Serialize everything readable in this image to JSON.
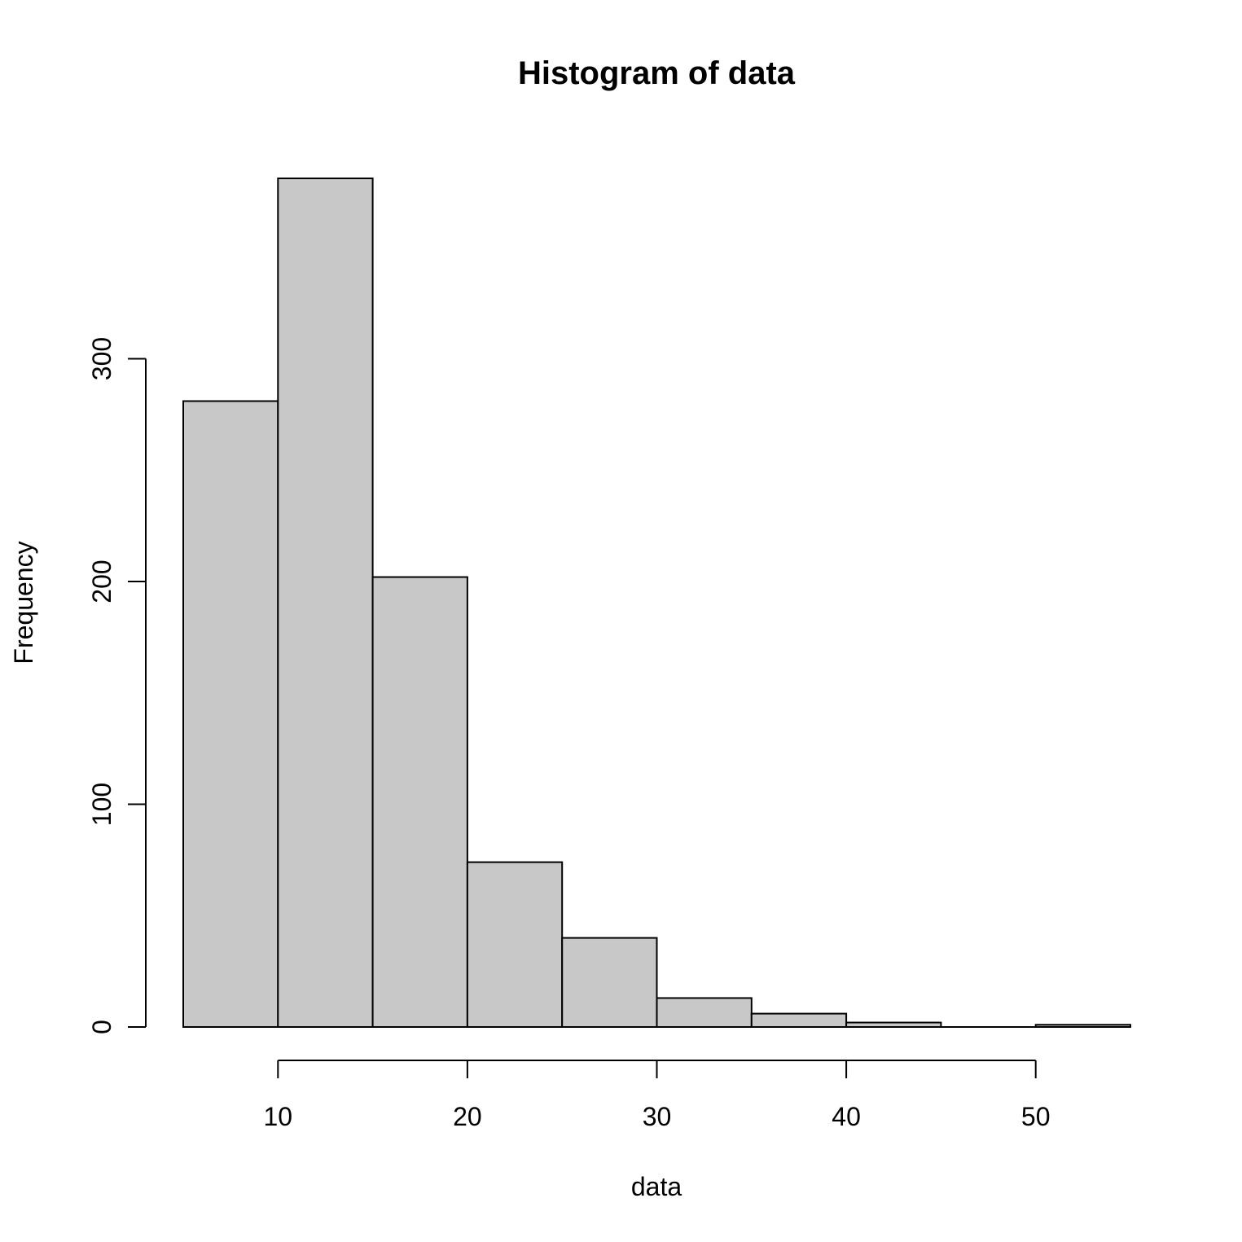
{
  "chart_data": {
    "type": "bar",
    "title": "Histogram of data",
    "xlabel": "data",
    "ylabel": "Frequency",
    "bins": [
      {
        "start": 5,
        "end": 10,
        "count": 281
      },
      {
        "start": 10,
        "end": 15,
        "count": 381
      },
      {
        "start": 15,
        "end": 20,
        "count": 202
      },
      {
        "start": 20,
        "end": 25,
        "count": 74
      },
      {
        "start": 25,
        "end": 30,
        "count": 40
      },
      {
        "start": 30,
        "end": 35,
        "count": 13
      },
      {
        "start": 35,
        "end": 40,
        "count": 6
      },
      {
        "start": 40,
        "end": 45,
        "count": 2
      },
      {
        "start": 45,
        "end": 50,
        "count": 0
      },
      {
        "start": 50,
        "end": 55,
        "count": 1
      }
    ],
    "xlim": [
      5,
      55
    ],
    "ylim": [
      0,
      381
    ],
    "x_ticks": [
      10,
      20,
      30,
      40,
      50
    ],
    "y_ticks": [
      0,
      100,
      200,
      300
    ],
    "bar_color": "#c8c8c8",
    "edge_color": "#000000",
    "grid": false
  }
}
